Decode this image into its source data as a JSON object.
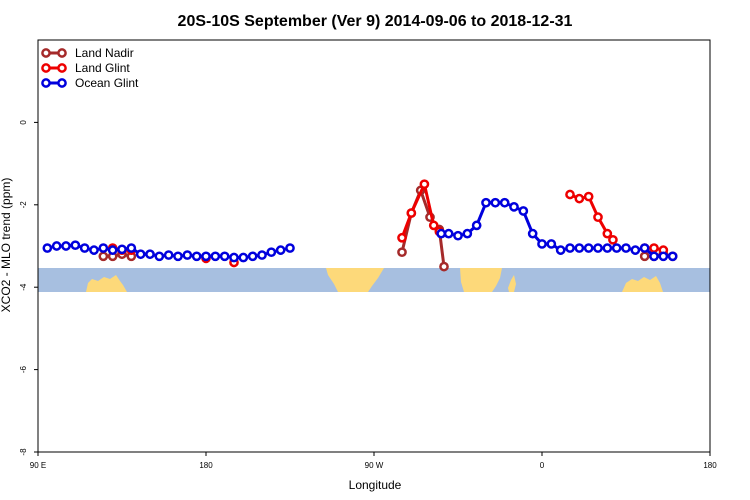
{
  "chart_data": {
    "type": "line",
    "title": "20S-10S September (Ver 9)   2014-09-06 to 2018-12-31",
    "xlabel": "Longitude",
    "ylabel": "XCO2 - MLO trend (ppm)",
    "xlim": [
      90,
      450
    ],
    "ylim": [
      -8,
      2
    ],
    "x_ticks": [
      {
        "value": 90,
        "label": "90 E"
      },
      {
        "value": 180,
        "label": "180"
      },
      {
        "value": 270,
        "label": "90 W"
      },
      {
        "value": 360,
        "label": "0"
      },
      {
        "value": 450,
        "label": "180"
      }
    ],
    "x_ticks_end": {
      "value": 450,
      "label": "90 E"
    },
    "y_ticks": [
      {
        "value": 0,
        "label": "0"
      },
      {
        "value": -2,
        "label": "-2"
      },
      {
        "value": -4,
        "label": "-4"
      },
      {
        "value": -6,
        "label": "-6"
      },
      {
        "value": -8,
        "label": "-8"
      }
    ],
    "legend_position": "top-left",
    "series": [
      {
        "name": "Land Nadir",
        "color": "#a52a2a",
        "segments": [
          [
            [
              125,
              -3.25
            ],
            [
              130,
              -3.25
            ],
            [
              135,
              -3.2
            ],
            [
              140,
              -3.25
            ]
          ],
          [
            [
              285,
              -3.15
            ],
            [
              290,
              -2.2
            ],
            [
              295,
              -1.65
            ],
            [
              300,
              -2.3
            ],
            [
              305,
              -2.6
            ],
            [
              307.5,
              -3.5
            ]
          ],
          [
            [
              415,
              -3.25
            ],
            [
              420,
              -3.25
            ],
            [
              425,
              -3.2
            ],
            [
              430,
              -3.25
            ]
          ]
        ]
      },
      {
        "name": "Land Glint",
        "color": "#ee0000",
        "segments": [
          [
            [
              130,
              -3.05
            ],
            [
              135,
              -3.1
            ],
            [
              140,
              -3.1
            ]
          ],
          [
            [
              180,
              -3.3
            ]
          ],
          [
            [
              195,
              -3.4
            ]
          ],
          [
            [
              285,
              -2.8
            ],
            [
              290,
              -2.2
            ],
            [
              297,
              -1.5
            ],
            [
              302,
              -2.5
            ],
            [
              305,
              -2.65
            ]
          ],
          [
            [
              375,
              -1.75
            ],
            [
              380,
              -1.85
            ],
            [
              385,
              -1.8
            ],
            [
              390,
              -2.3
            ],
            [
              395,
              -2.7
            ],
            [
              398,
              -2.85
            ]
          ],
          [
            [
              415,
              -3.05
            ],
            [
              420,
              -3.05
            ],
            [
              425,
              -3.1
            ]
          ]
        ]
      },
      {
        "name": "Ocean Glint",
        "color": "#0000dd",
        "segments": [
          [
            [
              95,
              -3.05
            ],
            [
              100,
              -3.0
            ],
            [
              105,
              -3.0
            ],
            [
              110,
              -2.98
            ],
            [
              115,
              -3.05
            ],
            [
              120,
              -3.1
            ],
            [
              125,
              -3.05
            ],
            [
              130,
              -3.1
            ],
            [
              135,
              -3.08
            ],
            [
              140,
              -3.05
            ],
            [
              145,
              -3.2
            ],
            [
              150,
              -3.2
            ],
            [
              155,
              -3.25
            ],
            [
              160,
              -3.22
            ],
            [
              165,
              -3.25
            ],
            [
              170,
              -3.22
            ],
            [
              175,
              -3.25
            ],
            [
              180,
              -3.25
            ],
            [
              185,
              -3.25
            ],
            [
              190,
              -3.25
            ],
            [
              195,
              -3.28
            ],
            [
              200,
              -3.28
            ],
            [
              205,
              -3.25
            ],
            [
              210,
              -3.22
            ],
            [
              215,
              -3.15
            ],
            [
              220,
              -3.1
            ],
            [
              225,
              -3.05
            ]
          ],
          [
            [
              306,
              -2.7
            ],
            [
              310,
              -2.7
            ],
            [
              315,
              -2.75
            ],
            [
              320,
              -2.7
            ],
            [
              325,
              -2.5
            ],
            [
              330,
              -1.95
            ],
            [
              335,
              -1.95
            ],
            [
              340,
              -1.95
            ],
            [
              345,
              -2.05
            ],
            [
              350,
              -2.15
            ],
            [
              355,
              -2.7
            ],
            [
              360,
              -2.95
            ],
            [
              365,
              -2.95
            ],
            [
              370,
              -3.1
            ],
            [
              375,
              -3.05
            ],
            [
              380,
              -3.05
            ],
            [
              385,
              -3.05
            ],
            [
              390,
              -3.05
            ],
            [
              395,
              -3.05
            ],
            [
              400,
              -3.05
            ],
            [
              405,
              -3.05
            ],
            [
              410,
              -3.1
            ],
            [
              415,
              -3.05
            ],
            [
              420,
              -3.25
            ],
            [
              425,
              -3.25
            ],
            [
              430,
              -3.25
            ]
          ]
        ]
      }
    ],
    "land_map": {
      "ocean_color": "#a7bfe0",
      "land_color": "#fdd97a"
    }
  }
}
